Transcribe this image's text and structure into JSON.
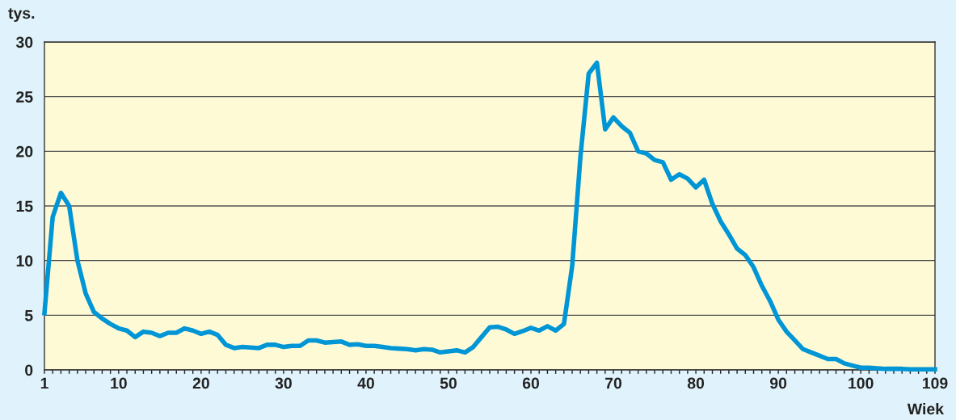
{
  "chart_data": {
    "type": "line",
    "ylabel": "tys.",
    "xlabel": "Wiek",
    "x": [
      1,
      2,
      3,
      4,
      5,
      6,
      7,
      8,
      9,
      10,
      11,
      12,
      13,
      14,
      15,
      16,
      17,
      18,
      19,
      20,
      21,
      22,
      23,
      24,
      25,
      26,
      27,
      28,
      29,
      30,
      31,
      32,
      33,
      34,
      35,
      36,
      37,
      38,
      39,
      40,
      41,
      42,
      43,
      44,
      45,
      46,
      47,
      48,
      49,
      50,
      51,
      52,
      53,
      54,
      55,
      56,
      57,
      58,
      59,
      60,
      61,
      62,
      63,
      64,
      65,
      66,
      67,
      68,
      69,
      70,
      71,
      72,
      73,
      74,
      75,
      76,
      77,
      78,
      79,
      80,
      81,
      82,
      83,
      84,
      85,
      86,
      87,
      88,
      89,
      90,
      91,
      92,
      93,
      94,
      95,
      96,
      97,
      98,
      99,
      100,
      101,
      102,
      103,
      104,
      105,
      106,
      107,
      108,
      109
    ],
    "series": [
      {
        "color": "#0096d6",
        "values": [
          5.2,
          14,
          16.2,
          15,
          10,
          7,
          5.3,
          4.7,
          4.2,
          3.8,
          3.6,
          3.0,
          3.5,
          3.4,
          3.1,
          3.4,
          3.4,
          3.8,
          3.6,
          3.3,
          3.5,
          3.2,
          2.3,
          2.0,
          2.1,
          2.05,
          2.0,
          2.3,
          2.3,
          2.1,
          2.2,
          2.2,
          2.7,
          2.7,
          2.5,
          2.55,
          2.6,
          2.3,
          2.35,
          2.2,
          2.2,
          2.1,
          2.0,
          1.95,
          1.9,
          1.8,
          1.9,
          1.85,
          1.6,
          1.7,
          1.8,
          1.6,
          2.1,
          3.0,
          3.9,
          3.95,
          3.7,
          3.3,
          3.55,
          3.85,
          3.6,
          4.0,
          3.6,
          4.2,
          9.5,
          19.5,
          27.1,
          28.1,
          22.0,
          23.1,
          22.3,
          21.7,
          20.0,
          19.8,
          19.2,
          19.0,
          17.4,
          17.9,
          17.5,
          16.7,
          17.4,
          15.2,
          13.6,
          12.4,
          11.1,
          10.5,
          9.4,
          7.7,
          6.3,
          4.6,
          3.5,
          2.7,
          1.9,
          1.6,
          1.3,
          1.0,
          1.0,
          0.6,
          0.4,
          0.2,
          0.2,
          0.15,
          0.1,
          0.1,
          0.1,
          0.05,
          0.05,
          0.05,
          0.05
        ]
      }
    ],
    "xlim": [
      1,
      109
    ],
    "xticks": [
      1,
      {
        "value": 2,
        "label": null
      },
      {
        "value": 3,
        "label": null
      },
      {
        "value": 4,
        "label": null
      },
      {
        "value": 5,
        "label": null
      },
      {
        "value": 6,
        "label": null
      },
      {
        "value": 7,
        "label": null
      },
      {
        "value": 8,
        "label": null
      },
      {
        "value": 9,
        "label": null
      },
      10,
      {
        "value": 11,
        "label": null
      },
      {
        "value": 12,
        "label": null
      },
      {
        "value": 13,
        "label": null
      },
      {
        "value": 14,
        "label": null
      },
      {
        "value": 15,
        "label": null
      },
      {
        "value": 16,
        "label": null
      },
      {
        "value": 17,
        "label": null
      },
      {
        "value": 18,
        "label": null
      },
      {
        "value": 19,
        "label": null
      },
      20,
      {
        "value": 21,
        "label": null
      },
      {
        "value": 22,
        "label": null
      },
      {
        "value": 23,
        "label": null
      },
      {
        "value": 24,
        "label": null
      },
      {
        "value": 25,
        "label": null
      },
      {
        "value": 26,
        "label": null
      },
      {
        "value": 27,
        "label": null
      },
      {
        "value": 28,
        "label": null
      },
      {
        "value": 29,
        "label": null
      },
      30,
      {
        "value": 31,
        "label": null
      },
      {
        "value": 32,
        "label": null
      },
      {
        "value": 33,
        "label": null
      },
      {
        "value": 34,
        "label": null
      },
      {
        "value": 35,
        "label": null
      },
      {
        "value": 36,
        "label": null
      },
      {
        "value": 37,
        "label": null
      },
      {
        "value": 38,
        "label": null
      },
      {
        "value": 39,
        "label": null
      },
      40,
      {
        "value": 41,
        "label": null
      },
      {
        "value": 42,
        "label": null
      },
      {
        "value": 43,
        "label": null
      },
      {
        "value": 44,
        "label": null
      },
      {
        "value": 45,
        "label": null
      },
      {
        "value": 46,
        "label": null
      },
      {
        "value": 47,
        "label": null
      },
      {
        "value": 48,
        "label": null
      },
      {
        "value": 49,
        "label": null
      },
      50,
      {
        "value": 51,
        "label": null
      },
      {
        "value": 52,
        "label": null
      },
      {
        "value": 53,
        "label": null
      },
      {
        "value": 54,
        "label": null
      },
      {
        "value": 55,
        "label": null
      },
      {
        "value": 56,
        "label": null
      },
      {
        "value": 57,
        "label": null
      },
      {
        "value": 58,
        "label": null
      },
      {
        "value": 59,
        "label": null
      },
      60,
      {
        "value": 61,
        "label": null
      },
      {
        "value": 62,
        "label": null
      },
      {
        "value": 63,
        "label": null
      },
      {
        "value": 64,
        "label": null
      },
      {
        "value": 65,
        "label": null
      },
      {
        "value": 66,
        "label": null
      },
      {
        "value": 67,
        "label": null
      },
      {
        "value": 68,
        "label": null
      },
      {
        "value": 69,
        "label": null
      },
      70,
      {
        "value": 71,
        "label": null
      },
      {
        "value": 72,
        "label": null
      },
      {
        "value": 73,
        "label": null
      },
      {
        "value": 74,
        "label": null
      },
      {
        "value": 75,
        "label": null
      },
      {
        "value": 76,
        "label": null
      },
      {
        "value": 77,
        "label": null
      },
      {
        "value": 78,
        "label": null
      },
      {
        "value": 79,
        "label": null
      },
      80,
      {
        "value": 81,
        "label": null
      },
      {
        "value": 82,
        "label": null
      },
      {
        "value": 83,
        "label": null
      },
      {
        "value": 84,
        "label": null
      },
      {
        "value": 85,
        "label": null
      },
      {
        "value": 86,
        "label": null
      },
      {
        "value": 87,
        "label": null
      },
      {
        "value": 88,
        "label": null
      },
      {
        "value": 89,
        "label": null
      },
      90,
      {
        "value": 91,
        "label": null
      },
      {
        "value": 92,
        "label": null
      },
      {
        "value": 93,
        "label": null
      },
      {
        "value": 94,
        "label": null
      },
      {
        "value": 95,
        "label": null
      },
      {
        "value": 96,
        "label": null
      },
      {
        "value": 97,
        "label": null
      },
      {
        "value": 98,
        "label": null
      },
      {
        "value": 99,
        "label": null
      },
      100,
      {
        "value": 101,
        "label": null
      },
      {
        "value": 102,
        "label": null
      },
      {
        "value": 103,
        "label": null
      },
      {
        "value": 104,
        "label": null
      },
      {
        "value": 105,
        "label": null
      },
      {
        "value": 106,
        "label": null
      },
      {
        "value": 107,
        "label": null
      },
      {
        "value": 108,
        "label": null
      },
      109
    ],
    "ylim": [
      0,
      30
    ],
    "yticks": [
      0,
      5,
      10,
      15,
      20,
      25,
      30
    ],
    "grid": "y",
    "legend": false,
    "marker": "none",
    "line_style": "solid"
  }
}
